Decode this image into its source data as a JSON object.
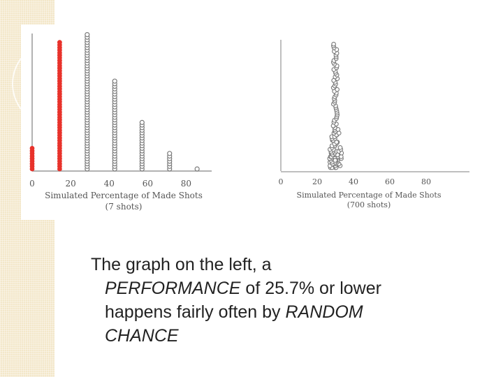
{
  "chart_data": [
    {
      "type": "dotplot",
      "xlabel": "Simulated Percentage of Made Shots",
      "xlabel_sub": "(7 shots)",
      "xlim": [
        0,
        90
      ],
      "xticks": [
        0,
        20,
        40,
        60,
        80
      ],
      "x": [
        0,
        14.3,
        28.6,
        42.9,
        57.1,
        71.4,
        85.7
      ],
      "counts": [
        9,
        50,
        53,
        35,
        19,
        7,
        1
      ],
      "highlight_x_max": 14.3,
      "colors": {
        "highlight": "#e8322b",
        "normal": "#7a7a7a"
      }
    },
    {
      "type": "dotplot",
      "xlabel": "Simulated Percentage of Made Shots",
      "xlabel_sub": "(700 shots)",
      "xlim": [
        0,
        100
      ],
      "xticks": [
        0,
        20,
        40,
        60,
        80
      ],
      "distribution_center": 30,
      "distribution_range": [
        26,
        35
      ],
      "colors": {
        "normal": "#7a7a7a"
      }
    }
  ],
  "text": {
    "bullet": "",
    "line1": "The graph on the left, a",
    "line2_em": "PERFORMANCE",
    "line2_rest": " of 25.7% or lower",
    "line3_start": "happens fairly often by ",
    "line3_em": "RANDOM",
    "line4_em": "CHANCE"
  }
}
